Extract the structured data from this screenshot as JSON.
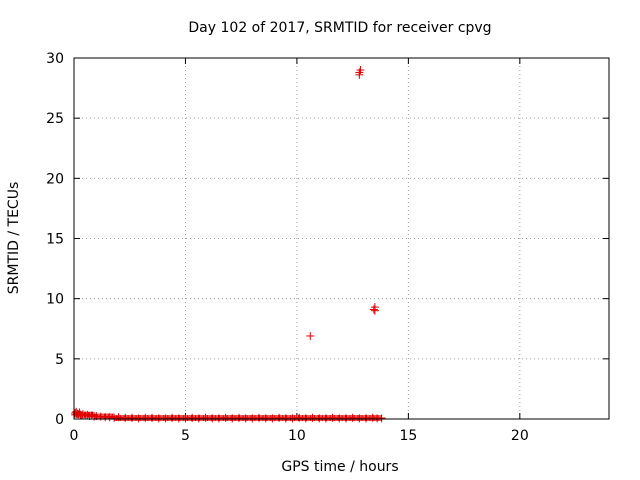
{
  "chart_data": {
    "type": "scatter",
    "title": "Day 102 of 2017, SRMTID for receiver cpvg",
    "xlabel": "GPS time / hours",
    "ylabel": "SRMTID / TECUs",
    "xlim": [
      0,
      24
    ],
    "ylim": [
      0,
      30
    ],
    "xticks": [
      0,
      5,
      10,
      15,
      20
    ],
    "yticks": [
      0,
      5,
      10,
      15,
      20,
      25,
      30
    ],
    "grid": true,
    "marker": "+",
    "color": "#e00000",
    "series": [
      {
        "name": "SRMTID",
        "x": [
          0.05,
          0.1,
          0.15,
          0.2,
          0.25,
          0.3,
          0.35,
          0.4,
          0.5,
          0.6,
          0.7,
          0.8,
          0.9,
          1.0,
          1.2,
          1.4,
          1.6,
          1.8,
          2.0,
          2.3,
          2.6,
          2.9,
          3.2,
          3.5,
          3.8,
          4.1,
          4.4,
          4.7,
          5.0,
          5.3,
          5.6,
          5.9,
          6.2,
          6.5,
          6.8,
          7.1,
          7.4,
          7.7,
          8.0,
          8.3,
          8.6,
          8.9,
          9.2,
          9.5,
          9.8,
          10.1,
          10.4,
          10.7,
          11.0,
          11.3,
          11.6,
          11.9,
          12.2,
          12.5,
          12.8,
          13.1,
          13.4,
          13.6,
          13.8,
          10.6,
          12.8,
          12.85,
          12.8,
          13.45,
          13.5,
          13.5
        ],
        "y": [
          0.5,
          0.6,
          0.45,
          0.4,
          0.55,
          0.35,
          0.3,
          0.4,
          0.3,
          0.35,
          0.25,
          0.3,
          0.2,
          0.25,
          0.2,
          0.15,
          0.15,
          0.1,
          0.15,
          0.1,
          0.1,
          0.05,
          0.1,
          0.1,
          0.05,
          0.05,
          0.1,
          0.05,
          0.05,
          0.1,
          0.05,
          0.1,
          0.05,
          0.05,
          0.1,
          0.05,
          0.1,
          0.05,
          0.05,
          0.1,
          0.05,
          0.05,
          0.1,
          0.05,
          0.05,
          0.1,
          0.05,
          0.1,
          0.05,
          0.05,
          0.1,
          0.05,
          0.05,
          0.1,
          0.05,
          0.05,
          0.1,
          0.05,
          0.05,
          6.9,
          28.8,
          29.0,
          28.6,
          9.1,
          9.3,
          9.0
        ]
      }
    ]
  }
}
